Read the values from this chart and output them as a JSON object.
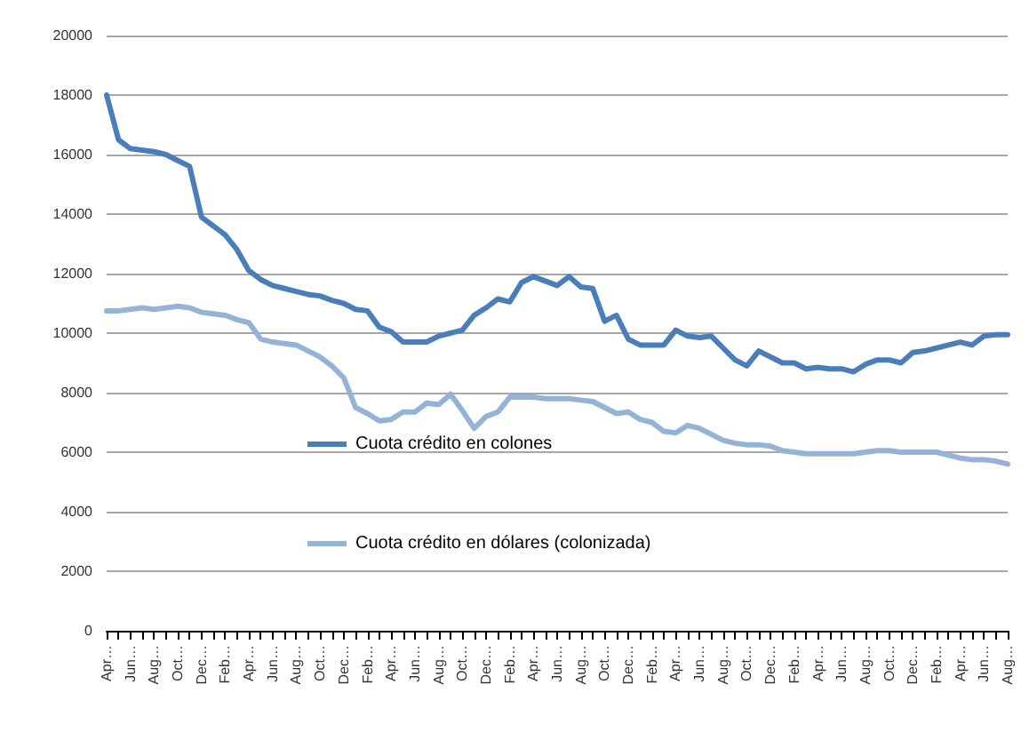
{
  "chart_data": {
    "type": "line",
    "categories": [
      "Apr…",
      null,
      "Jun…",
      null,
      "Aug…",
      null,
      "Oct…",
      null,
      "Dec…",
      null,
      "Feb…",
      null,
      "Apr…",
      null,
      "Jun…",
      null,
      "Aug…",
      null,
      "Oct…",
      null,
      "Dec…",
      null,
      "Feb…",
      null,
      "Apr…",
      null,
      "Jun…",
      null,
      "Aug…",
      null,
      "Oct…",
      null,
      "Dec…",
      null,
      "Feb…",
      null,
      "Apr…",
      null,
      "Jun…",
      null,
      "Aug…",
      null,
      "Oct…",
      null,
      "Dec…",
      null,
      "Feb…",
      null,
      "Apr…",
      null,
      "Jun…",
      null,
      "Aug…",
      null,
      "Oct…",
      null,
      "Dec…",
      null,
      "Feb…",
      null,
      "Apr…",
      null,
      "Jun…",
      null,
      "Aug…",
      null,
      "Oct…",
      null,
      "Dec…",
      null,
      "Feb…",
      null,
      "Apr…",
      null,
      "Jun…",
      null,
      "Aug…"
    ],
    "series": [
      {
        "name": "Cuota crédito en colones",
        "color": "#4a7ebb",
        "values": [
          18000,
          16500,
          16200,
          16150,
          16100,
          16000,
          15800,
          15600,
          13900,
          13600,
          13300,
          12800,
          12100,
          11800,
          11600,
          11500,
          11400,
          11300,
          11250,
          11100,
          11000,
          10800,
          10750,
          10200,
          10050,
          9700,
          9700,
          9700,
          9900,
          10000,
          10100,
          10600,
          10850,
          11150,
          11050,
          11700,
          11900,
          11750,
          11600,
          11900,
          11550,
          11500,
          10400,
          10600,
          9800,
          9600,
          9600,
          9600,
          10100,
          9900,
          9850,
          9900,
          9500,
          9100,
          8900,
          9400,
          9200,
          9000,
          9000,
          8800,
          8850,
          8800,
          8800,
          8700,
          8950,
          9100,
          9100,
          9000,
          9350,
          9400,
          9500,
          9600,
          9700,
          9600,
          9900,
          9950,
          9950
        ]
      },
      {
        "name": "Cuota crédito en dólares (colonizada)",
        "color": "#95b3d7",
        "values": [
          10750,
          10750,
          10800,
          10850,
          10800,
          10850,
          10900,
          10850,
          10700,
          10650,
          10600,
          10450,
          10350,
          9800,
          9700,
          9650,
          9600,
          9400,
          9200,
          8900,
          8500,
          7500,
          7300,
          7050,
          7100,
          7350,
          7350,
          7650,
          7600,
          7950,
          7400,
          6800,
          7200,
          7350,
          7850,
          7850,
          7850,
          7800,
          7800,
          7800,
          7750,
          7700,
          7500,
          7300,
          7350,
          7100,
          7000,
          6700,
          6650,
          6900,
          6800,
          6600,
          6400,
          6300,
          6250,
          6250,
          6200,
          6050,
          6000,
          5950,
          5950,
          5950,
          5950,
          5950,
          6000,
          6050,
          6050,
          6000,
          6000,
          6000,
          6000,
          5900,
          5800,
          5750,
          5750,
          5700,
          5600
        ]
      }
    ],
    "ylim": [
      0,
      20000
    ],
    "yticks": [
      0,
      2000,
      4000,
      6000,
      8000,
      10000,
      12000,
      14000,
      16000,
      18000,
      20000
    ],
    "grid": "y",
    "legend": "bottom",
    "marker": "none",
    "line_style": "solid"
  }
}
